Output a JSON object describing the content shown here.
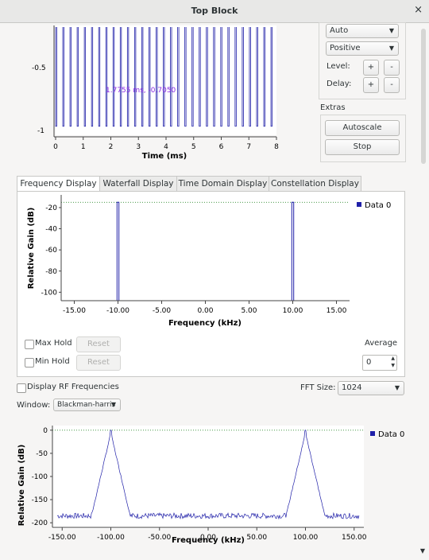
{
  "window": {
    "title": "Top Block",
    "close_glyph": "×"
  },
  "time_plot": {
    "y_ticks": [
      "-0.5",
      "-1"
    ],
    "x_ticks": [
      "0",
      "1",
      "2",
      "3",
      "4",
      "5",
      "6",
      "7",
      "8"
    ],
    "xlabel": "Time (ms)",
    "cursor_readout": "1.7755 ms, -0.7050"
  },
  "trigger_controls": {
    "mode": "Auto",
    "slope": "Positive",
    "level_label": "Level:",
    "delay_label": "Delay:",
    "plus": "+",
    "minus": "-",
    "extras_label": "Extras",
    "autoscale": "Autoscale",
    "stop": "Stop"
  },
  "tabs": [
    "Frequency Display",
    "Waterfall Display",
    "Time Domain Display",
    "Constellation Display"
  ],
  "freq_display": {
    "ylabel": "Relative Gain (dB)",
    "xlabel": "Frequency (kHz)",
    "y_ticks": [
      "-20",
      "-40",
      "-60",
      "-80",
      "-100"
    ],
    "x_ticks": [
      "-15.00",
      "-10.00",
      "-5.00",
      "0.00",
      "5.00",
      "10.00",
      "15.00"
    ],
    "legend": "Data 0",
    "max_hold": "Max Hold",
    "min_hold": "Min Hold",
    "reset": "Reset",
    "average_label": "Average",
    "average_value": "0"
  },
  "rf_controls": {
    "display_rf": "Display RF Frequencies",
    "fft_label": "FFT Size:",
    "fft_value": "1024",
    "window_label": "Window:",
    "window_value": "Blackman-harris"
  },
  "rf_plot": {
    "ylabel": "Relative Gain (dB)",
    "xlabel": "Frequency (kHz)",
    "y_ticks": [
      "0",
      "-50",
      "-100",
      "-150",
      "-200"
    ],
    "x_ticks": [
      "-150.00",
      "-100.00",
      "-50.00",
      "0.00",
      "50.00",
      "100.00",
      "150.00"
    ],
    "legend": "Data 0"
  },
  "colors": {
    "trace": "#1f1fa8",
    "ref_line": "#2e8b2e"
  },
  "chart_data": [
    {
      "type": "line",
      "xlabel": "Time (ms)",
      "ylabel": "",
      "xlim": [
        0,
        8
      ],
      "ylim": [
        -1.05,
        0
      ],
      "series": [
        {
          "pulse_period_ms": 0.26,
          "high": 0,
          "low": -1
        }
      ]
    },
    {
      "type": "line",
      "xlabel": "Frequency (kHz)",
      "ylabel": "Relative Gain (dB)",
      "xlim": [
        -16.5,
        16.5
      ],
      "ylim": [
        -108,
        -8
      ],
      "peaks_khz": [
        -10,
        10
      ],
      "peak_db": -15,
      "floor_db": -108,
      "series": [
        {
          "name": "Data 0"
        }
      ]
    },
    {
      "type": "line",
      "xlabel": "Frequency (kHz)",
      "ylabel": "Relative Gain (dB)",
      "xlim": [
        -160,
        160
      ],
      "ylim": [
        -210,
        10
      ],
      "peaks_khz": [
        -100,
        100
      ],
      "peak_db": 0,
      "noise_floor_db": -185,
      "series": [
        {
          "name": "Data 0"
        }
      ]
    }
  ]
}
